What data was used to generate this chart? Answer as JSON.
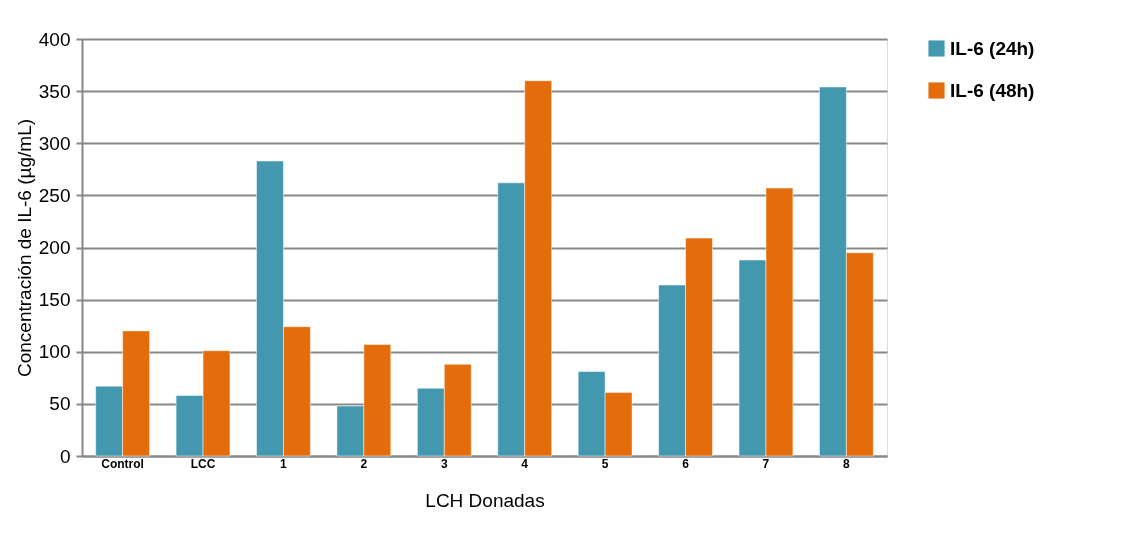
{
  "chart_data": {
    "type": "bar",
    "xlabel": "LCH Donadas",
    "ylabel": "Concentración de IL-6 (µg/mL)",
    "categories": [
      "Control",
      "LCC",
      "1",
      "2",
      "3",
      "4",
      "5",
      "6",
      "7",
      "8"
    ],
    "series": [
      {
        "name": "IL-6 (24h)",
        "color": "#4398b0",
        "values": [
          67,
          58,
          283,
          48,
          65,
          262,
          81,
          164,
          188,
          354
        ]
      },
      {
        "name": "IL-6 (48h)",
        "color": "#e46c0a",
        "values": [
          120,
          101,
          124,
          107,
          88,
          360,
          61,
          209,
          257,
          195
        ]
      }
    ],
    "ylim": [
      0,
      400
    ],
    "yticks": [
      0,
      50,
      100,
      150,
      200,
      250,
      300,
      350,
      400
    ],
    "grid": "y",
    "legend": "right"
  }
}
